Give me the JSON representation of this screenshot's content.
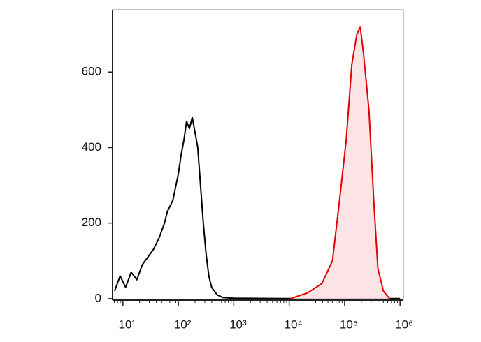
{
  "chart_data": {
    "type": "histogram-overlay",
    "x_scale": "log",
    "xlim": [
      6.5,
      1150000
    ],
    "ylim": [
      -4,
      765
    ],
    "xticks": [
      {
        "value": 10,
        "label": "10¹"
      },
      {
        "value": 100,
        "label": "10²"
      },
      {
        "value": 1000,
        "label": "10³"
      },
      {
        "value": 10000,
        "label": "10⁴"
      },
      {
        "value": 100000,
        "label": "10⁵"
      },
      {
        "value": 1000000,
        "label": "10⁶"
      }
    ],
    "yticks": [
      0,
      200,
      400,
      600
    ],
    "series": [
      {
        "color": "#000000",
        "fill": null,
        "x": [
          7.1,
          8.9,
          11.2,
          14.1,
          17.8,
          22.4,
          28.2,
          35.5,
          44.7,
          56.2,
          63.1,
          79.4,
          100,
          112,
          126,
          141,
          158,
          178,
          200,
          224,
          251,
          282,
          316,
          355,
          398,
          501,
          631,
          1000,
          10000,
          1000000
        ],
        "values": [
          20,
          60,
          30,
          70,
          50,
          90,
          110,
          130,
          160,
          200,
          230,
          260,
          330,
          380,
          420,
          470,
          450,
          480,
          440,
          400,
          300,
          200,
          120,
          60,
          30,
          10,
          3,
          1,
          0,
          0
        ]
      },
      {
        "color": "#e00000",
        "fill": "#fce3e6",
        "x": [
          10500,
          21400,
          38900,
          60300,
          79400,
          107000,
          135000,
          166000,
          191000,
          219000,
          275000,
          339000,
          398000,
          501000,
          646000
        ],
        "values": [
          0,
          15,
          40,
          100,
          250,
          420,
          620,
          700,
          720,
          650,
          500,
          250,
          80,
          20,
          0
        ]
      }
    ]
  }
}
